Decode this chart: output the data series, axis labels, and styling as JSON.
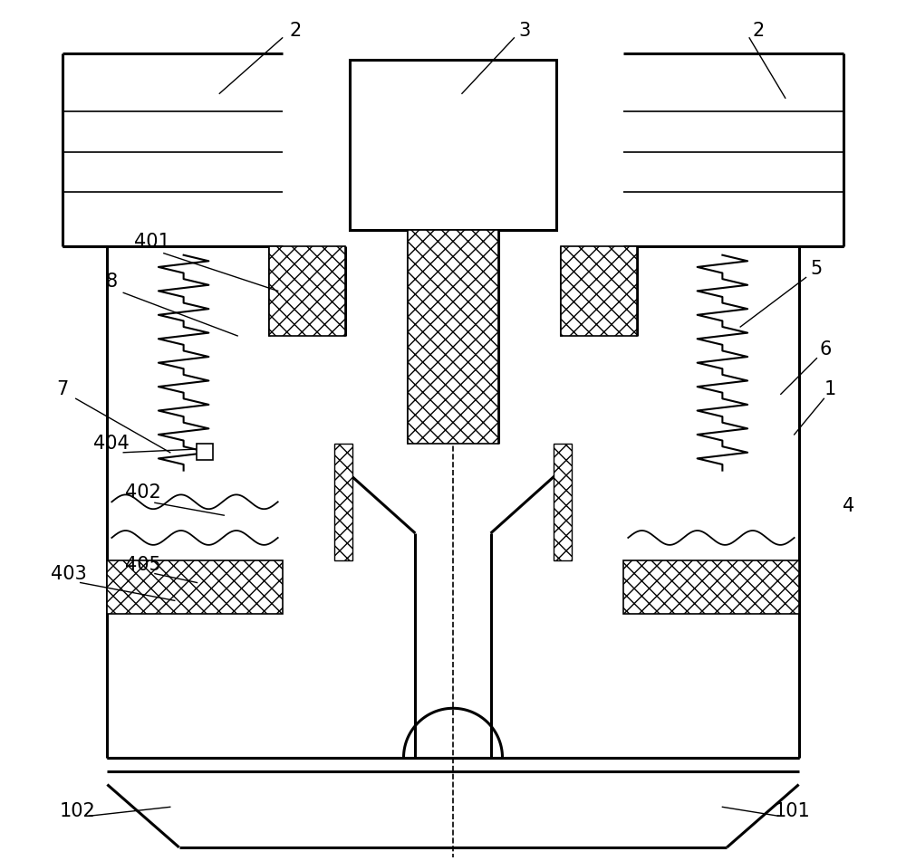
{
  "bg_color": "#ffffff",
  "line_color": "#000000",
  "lw_main": 2.2,
  "lw_thin": 1.2,
  "fig_width": 10.0,
  "fig_height": 9.51
}
